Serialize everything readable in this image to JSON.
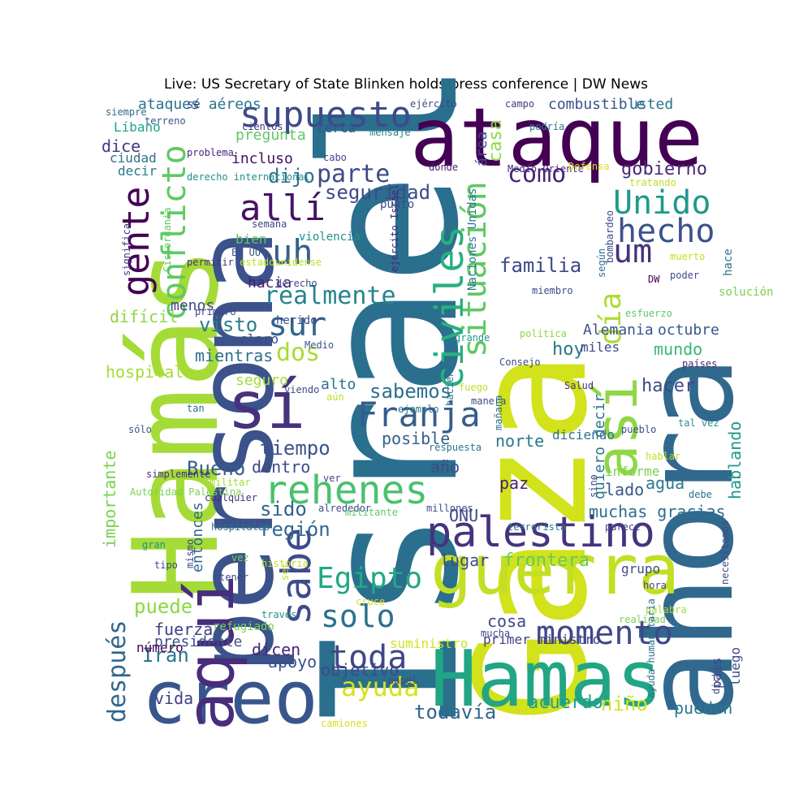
{
  "title": "Live: US Secretary of State Blinken holds press conference | DW News",
  "words": [
    {
      "text": "Israel",
      "color": "#2a6f8e"
    },
    {
      "text": "Gaza",
      "color": "#d2e21b"
    },
    {
      "text": "ahora",
      "color": "#31688e"
    },
    {
      "text": "Hamás",
      "color": "#a5db36"
    },
    {
      "text": "persona",
      "color": "#3b528b"
    },
    {
      "text": "ataque",
      "color": "#440154"
    },
    {
      "text": "Hamas",
      "color": "#21a585"
    },
    {
      "text": "creo",
      "color": "#39568c"
    },
    {
      "text": "guerra",
      "color": "#c2df23"
    },
    {
      "text": "aquí",
      "color": "#472d7b"
    },
    {
      "text": "sí",
      "color": "#46327e"
    },
    {
      "text": "palestino",
      "color": "#46337f"
    },
    {
      "text": "así",
      "color": "#90d743"
    },
    {
      "text": "rehenes",
      "color": "#4ac16d"
    },
    {
      "text": "supuesto",
      "color": "#3e4a89"
    },
    {
      "text": "momento",
      "color": "#3f4889"
    },
    {
      "text": "civiles",
      "color": "#29af7f"
    },
    {
      "text": "Franja",
      "color": "#365c8d"
    },
    {
      "text": "gente",
      "color": "#440154"
    },
    {
      "text": "conflicto",
      "color": "#5ec962"
    },
    {
      "text": "Unido",
      "color": "#1f9a8a"
    },
    {
      "text": "allí",
      "color": "#471365"
    },
    {
      "text": "sabe",
      "color": "#3e4c8a"
    },
    {
      "text": "toda",
      "color": "#3f4788"
    },
    {
      "text": "uh",
      "color": "#355f8d"
    },
    {
      "text": "situación",
      "color": "#5ec962"
    },
    {
      "text": "hecho",
      "color": "#3b528b"
    },
    {
      "text": "Egipto",
      "color": "#22a884"
    },
    {
      "text": "solo",
      "color": "#2c718e"
    },
    {
      "text": "um",
      "color": "#46327e"
    },
    {
      "text": "día",
      "color": "#addc30"
    },
    {
      "text": "ayuda",
      "color": "#d8e219"
    },
    {
      "text": "después",
      "color": "#31688e"
    },
    {
      "text": "sur",
      "color": "#32648e"
    },
    {
      "text": "realmente",
      "color": "#25848e"
    },
    {
      "text": "dos",
      "color": "#a8db34"
    },
    {
      "text": "cómo",
      "color": "#482475"
    },
    {
      "text": "parte",
      "color": "#3e4a89"
    },
    {
      "text": "todavía",
      "color": "#31688e"
    },
    {
      "text": "importante",
      "color": "#7ad151"
    },
    {
      "text": "Irán",
      "color": "#2c728e"
    },
    {
      "text": "gobierno",
      "color": "#482878"
    },
    {
      "text": "región",
      "color": "#31688e"
    },
    {
      "text": "frontera",
      "color": "#63cb5f"
    },
    {
      "text": "puede",
      "color": "#8fd744"
    },
    {
      "text": "sido",
      "color": "#33638d"
    },
    {
      "text": "tiempo",
      "color": "#3b528b"
    },
    {
      "text": "Bueno",
      "color": "#365d8d"
    },
    {
      "text": "familia",
      "color": "#3e4989"
    },
    {
      "text": "sabemos",
      "color": "#2c718e"
    },
    {
      "text": "seguridad",
      "color": "#3e4a89"
    },
    {
      "text": "dijo",
      "color": "#2c718e"
    },
    {
      "text": "hablando",
      "color": "#1f978b"
    },
    {
      "text": "visto",
      "color": "#287d8e"
    },
    {
      "text": "casa",
      "color": "#8fd744"
    },
    {
      "text": "niño",
      "color": "#d8e219"
    },
    {
      "text": "combustible",
      "color": "#3b528b"
    },
    {
      "text": "usted",
      "color": "#2a768e"
    },
    {
      "text": "hoy",
      "color": "#2a788e"
    },
    {
      "text": "hacer",
      "color": "#3f4788"
    },
    {
      "text": "acuerdo",
      "color": "#1f9e89"
    },
    {
      "text": "quiero decir",
      "color": "#2a788e"
    },
    {
      "text": "objetivo",
      "color": "#3f4889"
    },
    {
      "text": "muchas gracias",
      "color": "#2e6e8e"
    },
    {
      "text": "agua",
      "color": "#2a788e"
    },
    {
      "text": "Alemania",
      "color": "#3b528b"
    },
    {
      "text": "octubre",
      "color": "#39568c"
    },
    {
      "text": "mundo",
      "color": "#35b779"
    },
    {
      "text": "incluso",
      "color": "#471063"
    },
    {
      "text": "norte",
      "color": "#2a788e"
    },
    {
      "text": "posible",
      "color": "#355f8d"
    },
    {
      "text": "lugar",
      "color": "#3e4c8a"
    },
    {
      "text": "cosa",
      "color": "#3e4a89"
    },
    {
      "text": "vida",
      "color": "#433e85"
    },
    {
      "text": "dicen",
      "color": "#482878"
    },
    {
      "text": "apoyo",
      "color": "#3b528b"
    },
    {
      "text": "fuerza",
      "color": "#433e85"
    },
    {
      "text": "paz",
      "color": "#482173"
    },
    {
      "text": "ONU",
      "color": "#3e4a89"
    },
    {
      "text": "lado",
      "color": "#39568c"
    },
    {
      "text": "difícil",
      "color": "#8fd744"
    },
    {
      "text": "mientras",
      "color": "#2c718e"
    },
    {
      "text": "dice",
      "color": "#443983"
    },
    {
      "text": "pueden",
      "color": "#2a788e"
    },
    {
      "text": "año",
      "color": "#3e4a89"
    },
    {
      "text": "dentro",
      "color": "#3e4989"
    },
    {
      "text": "hospital",
      "color": "#a5db36"
    },
    {
      "text": "entonces",
      "color": "#31688e"
    },
    {
      "text": "presidente",
      "color": "#3b528b"
    },
    {
      "text": "alto",
      "color": "#2c728e"
    },
    {
      "text": "hacia",
      "color": "#481f70"
    },
    {
      "text": "seguro",
      "color": "#a5db36"
    },
    {
      "text": "menos",
      "color": "#3f4788"
    },
    {
      "text": "área",
      "color": "#3e4a89"
    },
    {
      "text": "ciudad",
      "color": "#2c718e"
    },
    {
      "text": "decir",
      "color": "#2a788e"
    },
    {
      "text": "bien",
      "color": "#5ec962"
    },
    {
      "text": "claro",
      "color": "#3e4c8a"
    },
    {
      "text": "pregunta",
      "color": "#5ec962"
    },
    {
      "text": "informe",
      "color": "#7ad151"
    },
    {
      "text": "grupo",
      "color": "#3e4c8a"
    },
    {
      "text": "país",
      "color": "#3f4788"
    },
    {
      "text": "número",
      "color": "#440154"
    },
    {
      "text": "ataques aéreos",
      "color": "#2c718e"
    },
    {
      "text": "Líbano",
      "color": "#20a486"
    },
    {
      "text": "luego",
      "color": "#3b528b"
    },
    {
      "text": "miles",
      "color": "#3e4a89"
    },
    {
      "text": "diciendo",
      "color": "#2c718e"
    },
    {
      "text": "suministro",
      "color": "#d2e21b"
    },
    {
      "text": "primer ministro",
      "color": "#433e85"
    },
    {
      "text": "refugiado",
      "color": "#7ad151"
    },
    {
      "text": "ejército",
      "color": "#3e4a89"
    },
    {
      "text": "sé",
      "color": "#433e85"
    },
    {
      "text": "siempre",
      "color": "#31688e"
    },
    {
      "text": "terreno",
      "color": "#3b528b"
    },
    {
      "text": "cientos",
      "color": "#46337f"
    },
    {
      "text": "cerca",
      "color": "#3b528b"
    },
    {
      "text": "mensaje",
      "color": "#287d8e"
    },
    {
      "text": "podría",
      "color": "#2a788e"
    },
    {
      "text": "problema",
      "color": "#482878"
    },
    {
      "text": "derecho internacional",
      "color": "#21918c"
    },
    {
      "text": "cabo",
      "color": "#414487"
    },
    {
      "text": "dónde",
      "color": "#482475"
    },
    {
      "text": "Medio Oriente",
      "color": "#482878"
    },
    {
      "text": "Defensa",
      "color": "#d8e219"
    },
    {
      "text": "tratando",
      "color": "#bddf26"
    },
    {
      "text": "campo",
      "color": "#433e85"
    },
    {
      "text": "punto",
      "color": "#3e4a89"
    },
    {
      "text": "semana",
      "color": "#3f4788"
    },
    {
      "text": "violencia",
      "color": "#21918c"
    },
    {
      "text": "EE UU",
      "color": "#3b528b"
    },
    {
      "text": "permitir",
      "color": "#46327e"
    },
    {
      "text": "estadounidense",
      "color": "#bddf26"
    },
    {
      "text": "derecho",
      "color": "#3e4a89"
    },
    {
      "text": "significa",
      "color": "#443983"
    },
    {
      "text": "Cisjordania",
      "color": "#5ec962"
    },
    {
      "text": "ejército Israel",
      "color": "#482878"
    },
    {
      "text": "Naciones Unidas",
      "color": "#2a788e"
    },
    {
      "text": "según",
      "color": "#2c718e"
    },
    {
      "text": "bombardeo",
      "color": "#3e4a89"
    },
    {
      "text": "DW",
      "color": "#440154"
    },
    {
      "text": "poder",
      "color": "#3e4a89"
    },
    {
      "text": "solución",
      "color": "#7ad151"
    },
    {
      "text": "muerto",
      "color": "#bddf26"
    },
    {
      "text": "hace",
      "color": "#2c718e"
    },
    {
      "text": "miembro",
      "color": "#3e4a89"
    },
    {
      "text": "esfuerzo",
      "color": "#5ec962"
    },
    {
      "text": "primero",
      "color": "#3f4788"
    },
    {
      "text": "herido",
      "color": "#3e4a89"
    },
    {
      "text": "Medio",
      "color": "#39568c"
    },
    {
      "text": "grande",
      "color": "#21918c"
    },
    {
      "text": "política",
      "color": "#90d743"
    },
    {
      "text": "Consejo",
      "color": "#3e4a89"
    },
    {
      "text": "países",
      "color": "#482878"
    },
    {
      "text": "Salud",
      "color": "#46337f"
    },
    {
      "text": "fuego",
      "color": "#bddf26"
    },
    {
      "text": "manera",
      "color": "#3e4a89"
    },
    {
      "text": "aún",
      "color": "#bddf26"
    },
    {
      "text": "ejemplo",
      "color": "#2a788e"
    },
    {
      "text": "haciendo",
      "color": "#2c718e"
    },
    {
      "text": "viendo",
      "color": "#3e4a89"
    },
    {
      "text": "tan",
      "color": "#2c718e"
    },
    {
      "text": "sólo",
      "color": "#39568c"
    },
    {
      "text": "simplemente",
      "color": "#46337f"
    },
    {
      "text": "militar",
      "color": "#a5db36"
    },
    {
      "text": "Autoridad Palestina",
      "color": "#7ad151"
    },
    {
      "text": "cualquier",
      "color": "#46327e"
    },
    {
      "text": "ver",
      "color": "#3e4a89"
    },
    {
      "text": "respuesta",
      "color": "#2a788e"
    },
    {
      "text": "mañana",
      "color": "#2c718e"
    },
    {
      "text": "pueblo",
      "color": "#3e4a89"
    },
    {
      "text": "tal vez",
      "color": "#21918c"
    },
    {
      "text": "hablar",
      "color": "#bddf26"
    },
    {
      "text": "sino",
      "color": "#3e4a89"
    },
    {
      "text": "debe",
      "color": "#2c718e"
    },
    {
      "text": "alrededor",
      "color": "#3e4a89"
    },
    {
      "text": "militante",
      "color": "#5ec962"
    },
    {
      "text": "millones",
      "color": "#3e4a89"
    },
    {
      "text": "terrorista",
      "color": "#2a788e"
    },
    {
      "text": "parece",
      "color": "#3e4a89"
    },
    {
      "text": "hospitales",
      "color": "#2c718e"
    },
    {
      "text": "gran",
      "color": "#21918c"
    },
    {
      "text": "mismo",
      "color": "#3e4a89"
    },
    {
      "text": "tipo",
      "color": "#3e4a89"
    },
    {
      "text": "vez",
      "color": "#7ad151"
    },
    {
      "text": "historia",
      "color": "#bddf26"
    },
    {
      "text": "ser",
      "color": "#bddf26"
    },
    {
      "text": "cruce",
      "color": "#d8e219"
    },
    {
      "text": "tener",
      "color": "#3e4a89"
    },
    {
      "text": "través",
      "color": "#21918c"
    },
    {
      "text": "mucha",
      "color": "#3e4a89"
    },
    {
      "text": "hora",
      "color": "#3e4a89"
    },
    {
      "text": "palabra",
      "color": "#a5db36"
    },
    {
      "text": "realidad",
      "color": "#7ad151"
    },
    {
      "text": "necesitamos",
      "color": "#3e4a89"
    },
    {
      "text": "dicho",
      "color": "#3e4a89"
    },
    {
      "text": "ayuda humanitaria",
      "color": "#2c718e"
    },
    {
      "text": "papel",
      "color": "#3e4a89"
    },
    {
      "text": "camiones",
      "color": "#d2e21b"
    }
  ]
}
